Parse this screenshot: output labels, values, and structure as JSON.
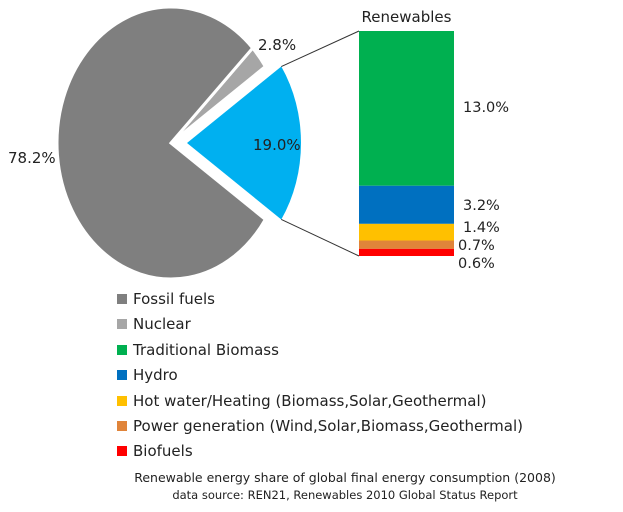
{
  "chart_data": {
    "type": "pie",
    "caption": "Renewable energy share of global final energy consumption (2008)",
    "source": "data source: REN21, Renewables 2010 Global Status Report",
    "pie": {
      "slices": [
        {
          "name": "Fossil fuels",
          "value": 78.2,
          "label": "78.2%",
          "color": "#7f7f7f"
        },
        {
          "name": "Nuclear",
          "value": 2.8,
          "label": "2.8%",
          "color": "#a6a6a6"
        },
        {
          "name": "Renewables",
          "value": 19.0,
          "label": "19.0%",
          "color": "#00b0f0",
          "exploded": true
        }
      ]
    },
    "breakdown": {
      "title": "Renewables",
      "type": "stacked-bar",
      "segments": [
        {
          "name": "Traditional Biomass",
          "value": 13.0,
          "label": "13.0%",
          "color": "#00b050"
        },
        {
          "name": "Hydro",
          "value": 3.2,
          "label": "3.2%",
          "color": "#0070c0"
        },
        {
          "name": "Hot water/Heating (Biomass,Solar,Geothermal)",
          "value": 1.4,
          "label": "1.4%",
          "color": "#ffc000"
        },
        {
          "name": "Power generation (Wind,Solar,Biomass,Geothermal)",
          "value": 0.7,
          "label": "0.7%",
          "color": "#e0843a"
        },
        {
          "name": "Biofuels",
          "value": 0.6,
          "label": "0.6%",
          "color": "#ff0000"
        }
      ]
    },
    "legend": {
      "placement": "bottom-left",
      "entries": [
        {
          "name": "Fossil fuels",
          "color": "#7f7f7f"
        },
        {
          "name": "Nuclear",
          "color": "#a6a6a6"
        },
        {
          "name": "Traditional Biomass",
          "color": "#00b050"
        },
        {
          "name": "Hydro",
          "color": "#0070c0"
        },
        {
          "name": "Hot water/Heating (Biomass,Solar,Geothermal)",
          "color": "#ffc000"
        },
        {
          "name": "Power generation (Wind,Solar,Biomass,Geothermal)",
          "color": "#e0843a"
        },
        {
          "name": "Biofuels",
          "color": "#ff0000"
        }
      ]
    }
  }
}
